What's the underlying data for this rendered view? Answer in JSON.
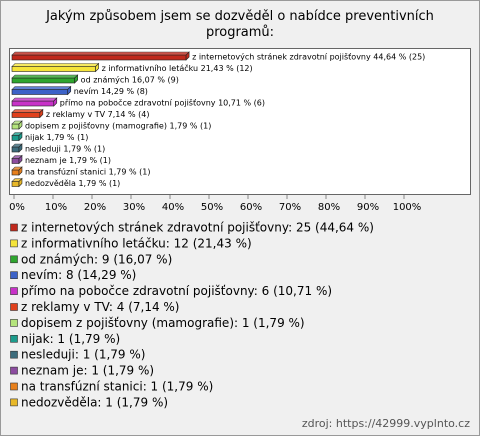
{
  "chart_data": {
    "type": "bar",
    "orientation": "horizontal",
    "title": "Jakým způsobem jsem se dozvěděl o nabídce preventivních programů:",
    "values": [
      44.64,
      21.43,
      16.07,
      14.29,
      10.71,
      7.14,
      1.79,
      1.79,
      1.79,
      1.79,
      1.79,
      1.79
    ],
    "value_labels": [
      "z internetových stránek zdravotní pojišťovny 44,64 % (25)",
      "z informativního letáčku 21,43 % (12)",
      "od známých 16,07 % (9)",
      "nevím 14,29 % (8)",
      "přímo na pobočce zdravotní pojišťovny 10,71 % (6)",
      "z reklamy v TV 7,14 % (4)",
      "dopisem z pojišťovny (mamografie) 1,79 % (1)",
      "nijak 1,79 % (1)",
      "nesleduji 1,79 % (1)",
      "neznam je 1,79 % (1)",
      "na transfúzní stanici 1,79 % (1)",
      "nedozvěděla 1,79 % (1)"
    ],
    "legend": [
      "z internetových stránek zdravotní pojišťovny: 25 (44,64 %)",
      "z informativního letáčku: 12 (21,43 %)",
      "od známých: 9 (16,07 %)",
      "nevím: 8 (14,29 %)",
      "přímo na pobočce zdravotní pojišťovny: 6 (10,71 %)",
      "z reklamy v TV: 4 (7,14 %)",
      "dopisem z pojišťovny (mamografie): 1 (1,79 %)",
      "nijak: 1 (1,79 %)",
      "nesleduji: 1 (1,79 %)",
      "neznam je: 1 (1,79 %)",
      "na transfúzní stanici: 1 (1,79 %)",
      "nedozvěděla: 1 (1,79 %)"
    ],
    "colors": [
      "#c0281c",
      "#f5e43a",
      "#2fa52f",
      "#3c62c8",
      "#c832c8",
      "#e0401c",
      "#b4e47c",
      "#1c9c8c",
      "#3c6c7c",
      "#8c4ca0",
      "#e8801c",
      "#e8b828"
    ],
    "xlim": [
      0,
      100
    ],
    "xticks": [
      {
        "value": 0,
        "label": "0%"
      },
      {
        "value": 10,
        "label": "10%"
      },
      {
        "value": 20,
        "label": "20%"
      },
      {
        "value": 30,
        "label": "30%"
      },
      {
        "value": 40,
        "label": "40%"
      },
      {
        "value": 50,
        "label": "50%"
      },
      {
        "value": 60,
        "label": "60%"
      },
      {
        "value": 70,
        "label": "70%"
      },
      {
        "value": 80,
        "label": "80%"
      },
      {
        "value": 90,
        "label": "90%"
      },
      {
        "value": 100,
        "label": "100%"
      }
    ],
    "source": "zdroj: https://42999.vyplnto.cz"
  }
}
